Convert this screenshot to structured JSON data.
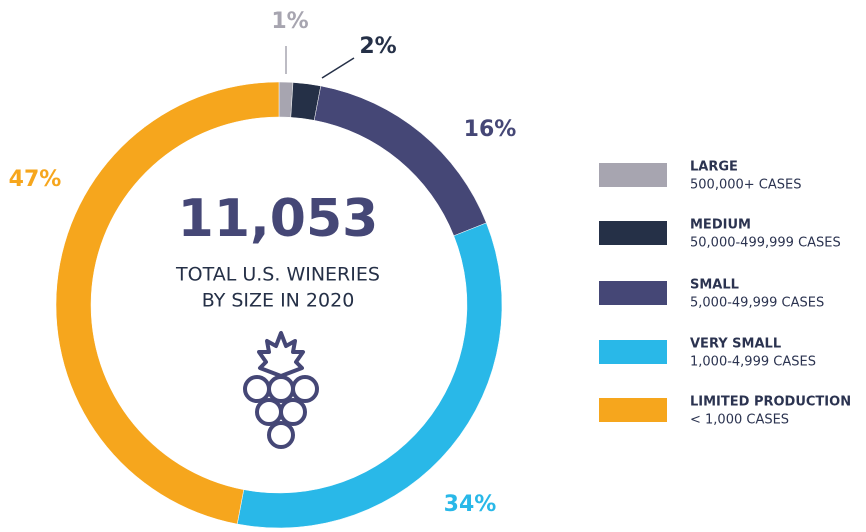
{
  "chart_data": {
    "type": "donut",
    "center_title": "11,053",
    "center_lines": [
      "TOTAL U.S. WINERIES",
      "BY SIZE IN 2020"
    ],
    "categories": [
      "LARGE",
      "MEDIUM",
      "SMALL",
      "VERY SMALL",
      "LIMITED PRODUCTION"
    ],
    "category_notes": [
      "500,000+ CASES",
      "50,000-499,999 CASES",
      "5,000-49,999 CASES",
      "1,000-4,999 CASES",
      "< 1,000 CASES"
    ],
    "values": [
      1,
      2,
      16,
      34,
      47
    ],
    "value_labels": [
      "1%",
      "2%",
      "16%",
      "34%",
      "47%"
    ],
    "colors": [
      "#a7a5b0",
      "#253047",
      "#454776",
      "#29b8e8",
      "#f6a61d"
    ],
    "legend": "right"
  }
}
